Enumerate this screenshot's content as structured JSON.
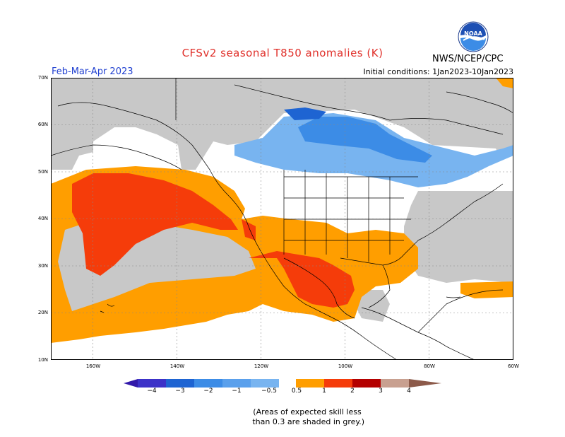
{
  "header": {
    "title": "CFSv2 seasonal T850 anomalies (K)",
    "period": "Feb-Mar-Apr 2023",
    "initial_conditions": "Initial conditions: 1Jan2023-10Jan2023",
    "agency": "NWS/NCEP/CPC",
    "logo_text": "NOAA"
  },
  "map": {
    "lat_labels": [
      "70N",
      "60N",
      "50N",
      "40N",
      "30N",
      "20N",
      "10N"
    ],
    "lon_labels": [
      "160W",
      "140W",
      "120W",
      "100W",
      "80W",
      "60W"
    ],
    "colors": {
      "grey_low_skill": "#c8c8c8",
      "neg_0_5_to_1": "#78b4f0",
      "neg_1_to_2": "#3c8ce6",
      "neg_2_to_3": "#1e64d2",
      "neg_3_to_4": "#3c32c8",
      "pos_0_5_to_1": "#ff9e00",
      "pos_1_to_2": "#f53c0a",
      "pos_2_to_3": "#b40000",
      "pos_3_to_4": "#c8a090",
      "pos_gt_4": "#8c5a4a"
    }
  },
  "colorbar": {
    "labels": [
      "−4",
      "−3",
      "−2",
      "−1",
      "−0.5",
      "0.5",
      "1",
      "2",
      "3",
      "4"
    ],
    "colors": [
      "#3219aa",
      "#3c32c8",
      "#1e64d2",
      "#3c8ce6",
      "#78b4f0",
      "#ffffff",
      "#ff9e00",
      "#f53c0a",
      "#b40000",
      "#c8a090",
      "#8c5a4a"
    ]
  },
  "footnote": {
    "line1": "(Areas of expected skill less",
    "line2": " than 0.3 are shaded in grey.)"
  }
}
